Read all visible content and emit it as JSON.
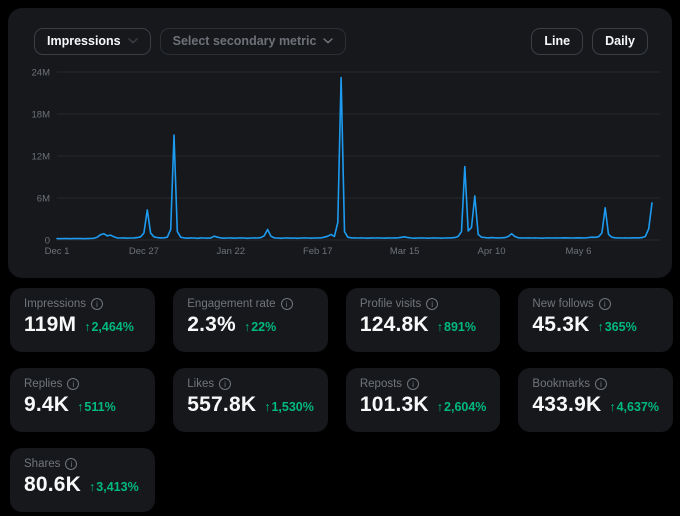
{
  "toolbar": {
    "primary_metric_label": "Impressions",
    "secondary_metric_label": "Select secondary metric",
    "chart_type_label": "Line",
    "granularity_label": "Daily"
  },
  "icons": {
    "info": "i",
    "up_arrow": "↑"
  },
  "colors": {
    "page_bg": "#000000",
    "panel_bg": "#16181c",
    "accent_blue": "#1d9bf0",
    "positive_green": "#00ba7c",
    "muted_text": "#71767b",
    "primary_text": "#f7f9f9",
    "gridline": "#25282c"
  },
  "chart_data": {
    "type": "line",
    "title": "Impressions per day",
    "unit": "millions",
    "ylim": [
      0,
      24
    ],
    "grid": true,
    "legend": "none",
    "y_ticks": [
      {
        "value": 0,
        "label": "0"
      },
      {
        "value": 6,
        "label": "6M"
      },
      {
        "value": 12,
        "label": "12M"
      },
      {
        "value": 18,
        "label": "18M"
      },
      {
        "value": 24,
        "label": "24M"
      }
    ],
    "x_ticks": [
      {
        "day": 0,
        "label": "Dec 1"
      },
      {
        "day": 26,
        "label": "Dec 27"
      },
      {
        "day": 52,
        "label": "Jan 22"
      },
      {
        "day": 78,
        "label": "Feb 17"
      },
      {
        "day": 104,
        "label": "Mar 15"
      },
      {
        "day": 130,
        "label": "Apr 10"
      },
      {
        "day": 156,
        "label": "May 6"
      }
    ],
    "series": [
      {
        "name": "Impressions",
        "color": "#1d9bf0",
        "values_millions": [
          0.2,
          0.18,
          0.22,
          0.2,
          0.19,
          0.21,
          0.2,
          0.22,
          0.19,
          0.2,
          0.21,
          0.25,
          0.4,
          0.75,
          0.9,
          0.6,
          0.7,
          0.45,
          0.3,
          0.28,
          0.3,
          0.26,
          0.28,
          0.3,
          0.35,
          0.45,
          1.0,
          4.3,
          1.0,
          0.45,
          0.35,
          0.3,
          0.32,
          0.4,
          1.5,
          15.0,
          1.2,
          0.4,
          0.3,
          0.26,
          0.3,
          0.28,
          0.25,
          0.3,
          0.28,
          0.26,
          0.3,
          0.55,
          0.4,
          0.3,
          0.26,
          0.28,
          0.3,
          0.26,
          0.28,
          0.3,
          0.28,
          0.25,
          0.28,
          0.3,
          0.28,
          0.35,
          0.6,
          1.5,
          0.55,
          0.3,
          0.28,
          0.25,
          0.28,
          0.3,
          0.26,
          0.28,
          0.25,
          0.28,
          0.3,
          0.28,
          0.26,
          0.28,
          0.3,
          0.32,
          0.4,
          0.55,
          0.8,
          0.5,
          2.5,
          23.2,
          1.2,
          0.4,
          0.32,
          0.3,
          0.28,
          0.3,
          0.28,
          0.26,
          0.3,
          0.28,
          0.3,
          0.28,
          0.26,
          0.3,
          0.28,
          0.3,
          0.32,
          0.38,
          0.45,
          0.35,
          0.28,
          0.26,
          0.28,
          0.3,
          0.28,
          0.26,
          0.28,
          0.3,
          0.28,
          0.26,
          0.28,
          0.3,
          0.32,
          0.35,
          0.5,
          1.2,
          10.5,
          1.3,
          1.8,
          6.3,
          0.8,
          0.4,
          0.35,
          0.3,
          0.35,
          0.32,
          0.3,
          0.32,
          0.35,
          0.5,
          0.9,
          0.5,
          0.32,
          0.3,
          0.28,
          0.3,
          0.28,
          0.3,
          0.28,
          0.26,
          0.28,
          0.3,
          0.28,
          0.3,
          0.28,
          0.3,
          0.32,
          0.3,
          0.28,
          0.3,
          0.32,
          0.3,
          0.28,
          0.35,
          0.4,
          0.38,
          0.45,
          1.0,
          4.6,
          0.8,
          0.4,
          0.32,
          0.3,
          0.28,
          0.3,
          0.28,
          0.3,
          0.32,
          0.3,
          0.35,
          0.5,
          1.6,
          5.3
        ]
      }
    ]
  },
  "cards": [
    {
      "label": "Impressions",
      "value": "119M",
      "change": "2,464%"
    },
    {
      "label": "Engagement rate",
      "value": "2.3%",
      "change": "22%"
    },
    {
      "label": "Profile visits",
      "value": "124.8K",
      "change": "891%"
    },
    {
      "label": "New follows",
      "value": "45.3K",
      "change": "365%"
    },
    {
      "label": "Replies",
      "value": "9.4K",
      "change": "511%"
    },
    {
      "label": "Likes",
      "value": "557.8K",
      "change": "1,530%"
    },
    {
      "label": "Reposts",
      "value": "101.3K",
      "change": "2,604%"
    },
    {
      "label": "Bookmarks",
      "value": "433.9K",
      "change": "4,637%"
    },
    {
      "label": "Shares",
      "value": "80.6K",
      "change": "3,413%"
    }
  ]
}
